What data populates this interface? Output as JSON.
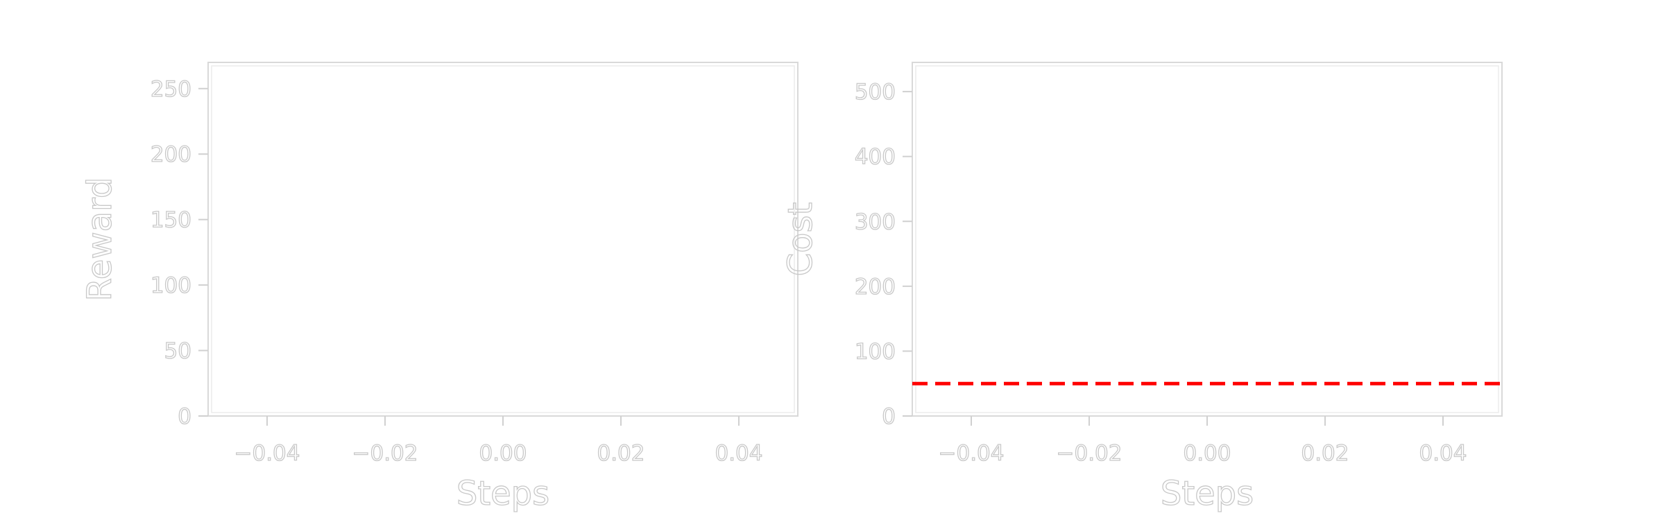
{
  "chart_data": [
    {
      "type": "line",
      "title": "",
      "xlabel": "Steps",
      "ylabel": "Reward",
      "xlim": [
        -0.05,
        0.05
      ],
      "ylim": [
        0,
        270
      ],
      "xticks": [
        -0.04,
        -0.02,
        0.0,
        0.02,
        0.04
      ],
      "xtick_labels": [
        "−0.04",
        "−0.02",
        "0.00",
        "0.02",
        "0.04"
      ],
      "yticks": [
        0,
        50,
        100,
        150,
        200,
        250
      ],
      "ytick_labels": [
        "0",
        "50",
        "100",
        "150",
        "200",
        "250"
      ],
      "grid": false,
      "series": [],
      "hlines": []
    },
    {
      "type": "line",
      "title": "",
      "xlabel": "Steps",
      "ylabel": "Cost",
      "xlim": [
        -0.05,
        0.05
      ],
      "ylim": [
        0,
        545
      ],
      "xticks": [
        -0.04,
        -0.02,
        0.0,
        0.02,
        0.04
      ],
      "xtick_labels": [
        "−0.04",
        "−0.02",
        "0.00",
        "0.02",
        "0.04"
      ],
      "yticks": [
        0,
        100,
        200,
        300,
        400,
        500
      ],
      "ytick_labels": [
        "0",
        "100",
        "200",
        "300",
        "400",
        "500"
      ],
      "grid": false,
      "series": [],
      "hlines": [
        {
          "y": 50,
          "color": "#ff0000",
          "style": "dashed"
        }
      ]
    }
  ]
}
